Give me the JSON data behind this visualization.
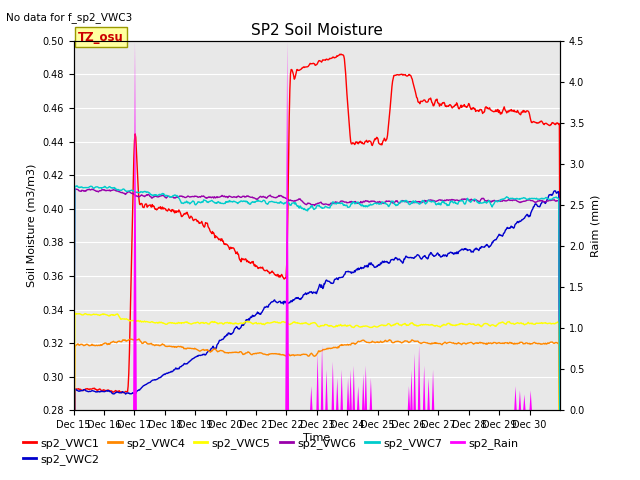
{
  "title": "SP2 Soil Moisture",
  "no_data_text": "No data for f_sp2_VWC3",
  "xlabel": "Time",
  "ylabel_left": "Soil Moisture (m3/m3)",
  "ylabel_right": "Raim (mm)",
  "ylim_left": [
    0.28,
    0.5
  ],
  "ylim_right": [
    0.0,
    4.5
  ],
  "yticks_left": [
    0.28,
    0.3,
    0.32,
    0.34,
    0.36,
    0.38,
    0.4,
    0.42,
    0.44,
    0.46,
    0.48,
    0.5
  ],
  "yticks_right": [
    0.0,
    0.5,
    1.0,
    1.5,
    2.0,
    2.5,
    3.0,
    3.5,
    4.0,
    4.5
  ],
  "xtick_labels": [
    "Dec 15",
    "Dec 16",
    "Dec 17",
    "Dec 18",
    "Dec 19",
    "Dec 20",
    "Dec 21",
    "Dec 22",
    "Dec 23",
    "Dec 24",
    "Dec 25",
    "Dec 26",
    "Dec 27",
    "Dec 28",
    "Dec 29",
    "Dec 30"
  ],
  "colors": {
    "VWC1": "#FF0000",
    "VWC2": "#0000CC",
    "VWC4": "#FF8800",
    "VWC5": "#FFFF00",
    "VWC6": "#9900AA",
    "VWC7": "#00CCCC",
    "Rain": "#FF00FF"
  },
  "background_color": "#E8E8E8",
  "tz_osu_box_facecolor": "#FFFFA0",
  "tz_osu_box_edgecolor": "#999900",
  "tz_osu_text_color": "#CC0000",
  "grid_color": "#FFFFFF",
  "title_fontsize": 11,
  "label_fontsize": 8,
  "tick_fontsize": 7,
  "legend_fontsize": 8
}
